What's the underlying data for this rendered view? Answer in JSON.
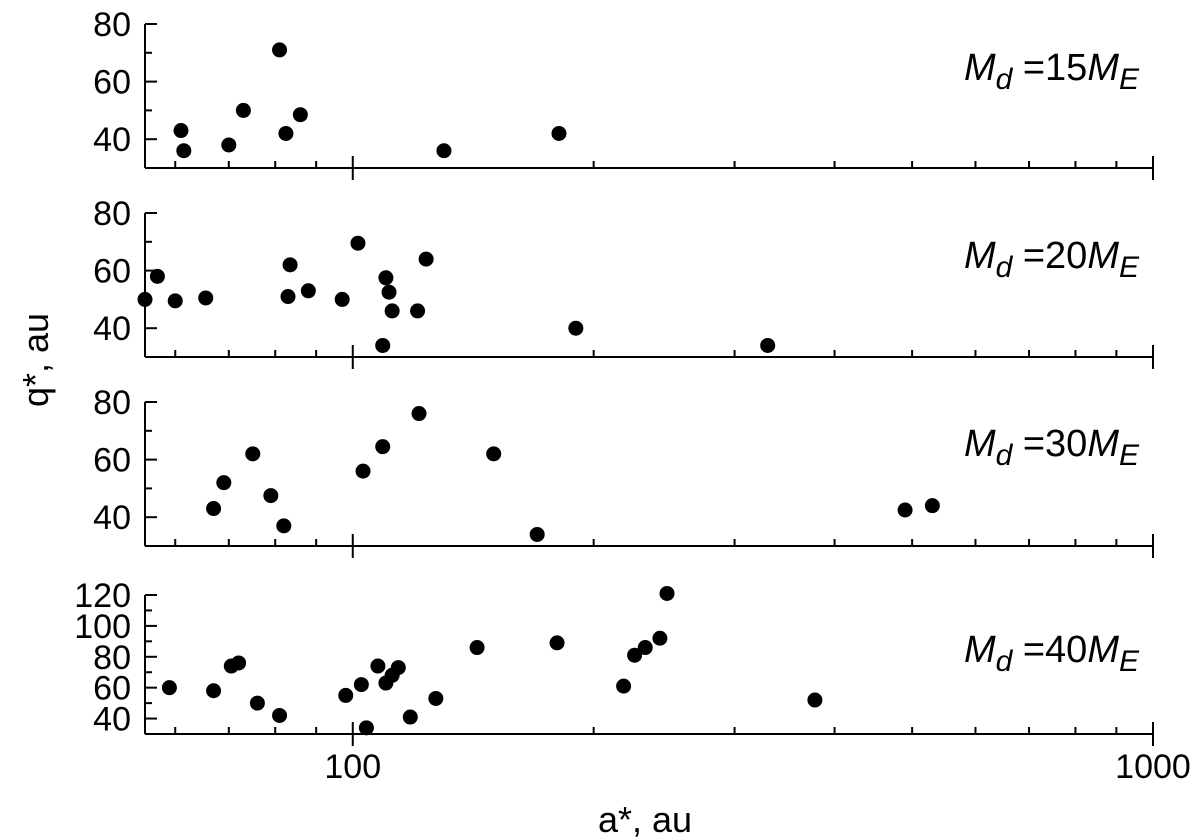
{
  "chart_data": {
    "type": "scatter",
    "xlabel": "a*, au",
    "ylabel": "q*, au",
    "x_scale": "log",
    "xlim": [
      55,
      1000
    ],
    "x_tick_labels": [
      {
        "value": 100,
        "label": "100"
      },
      {
        "value": 1000,
        "label": "1000"
      }
    ],
    "x_minor_ticks": [
      60,
      70,
      80,
      90,
      200,
      300,
      400,
      500,
      600,
      700,
      800,
      900
    ],
    "marker_color": "#000000",
    "panels": [
      {
        "label_parts": [
          {
            "text": "M",
            "italic": true
          },
          {
            "text": "d",
            "italic": true,
            "sub": true
          },
          {
            "text": " =15"
          },
          {
            "text": "M",
            "italic": true
          },
          {
            "text": "E",
            "italic": true,
            "sub": true
          }
        ],
        "ylim": [
          30,
          80
        ],
        "yticks": [
          40,
          60,
          80
        ],
        "points": [
          [
            61,
            43
          ],
          [
            61.5,
            36
          ],
          [
            70,
            38
          ],
          [
            73,
            50
          ],
          [
            81,
            71
          ],
          [
            82.5,
            42
          ],
          [
            86,
            48.5
          ],
          [
            130,
            36
          ],
          [
            181,
            42
          ]
        ]
      },
      {
        "label_parts": [
          {
            "text": "M",
            "italic": true
          },
          {
            "text": "d",
            "italic": true,
            "sub": true
          },
          {
            "text": " =20"
          },
          {
            "text": "M",
            "italic": true
          },
          {
            "text": "E",
            "italic": true,
            "sub": true
          }
        ],
        "ylim": [
          30,
          80
        ],
        "yticks": [
          40,
          60,
          80
        ],
        "points": [
          [
            55,
            50
          ],
          [
            57,
            58
          ],
          [
            60,
            49.5
          ],
          [
            65.5,
            50.5
          ],
          [
            83,
            51
          ],
          [
            83.5,
            62
          ],
          [
            88,
            53
          ],
          [
            97,
            50
          ],
          [
            101.5,
            69.5
          ],
          [
            110,
            57.5
          ],
          [
            111,
            52.5
          ],
          [
            112,
            46
          ],
          [
            120.5,
            46
          ],
          [
            123.5,
            64
          ],
          [
            109,
            34
          ],
          [
            190,
            40
          ],
          [
            330,
            34
          ]
        ]
      },
      {
        "label_parts": [
          {
            "text": "M",
            "italic": true
          },
          {
            "text": "d",
            "italic": true,
            "sub": true
          },
          {
            "text": " =30"
          },
          {
            "text": "M",
            "italic": true
          },
          {
            "text": "E",
            "italic": true,
            "sub": true
          }
        ],
        "ylim": [
          30,
          80
        ],
        "yticks": [
          40,
          60,
          80
        ],
        "points": [
          [
            67,
            43
          ],
          [
            69,
            52
          ],
          [
            75,
            62
          ],
          [
            79,
            47.5
          ],
          [
            82,
            37
          ],
          [
            103,
            56
          ],
          [
            109,
            64.5
          ],
          [
            121,
            76
          ],
          [
            150,
            62
          ],
          [
            170,
            34
          ],
          [
            490,
            42.5
          ],
          [
            530,
            44
          ]
        ]
      },
      {
        "label_parts": [
          {
            "text": "M",
            "italic": true
          },
          {
            "text": "d",
            "italic": true,
            "sub": true
          },
          {
            "text": " =40"
          },
          {
            "text": "M",
            "italic": true
          },
          {
            "text": "E",
            "italic": true,
            "sub": true
          }
        ],
        "ylim": [
          30,
          120
        ],
        "yticks": [
          40,
          60,
          80,
          100,
          120
        ],
        "points": [
          [
            59,
            60
          ],
          [
            67,
            58
          ],
          [
            70.5,
            74
          ],
          [
            72,
            76
          ],
          [
            76,
            50
          ],
          [
            81,
            42
          ],
          [
            98,
            55
          ],
          [
            102.5,
            62
          ],
          [
            104,
            34
          ],
          [
            107.5,
            74
          ],
          [
            110,
            63
          ],
          [
            112,
            68
          ],
          [
            114,
            73
          ],
          [
            118,
            41
          ],
          [
            127,
            53
          ],
          [
            143,
            86
          ],
          [
            180,
            89
          ],
          [
            218,
            61
          ],
          [
            225,
            81
          ],
          [
            232,
            86
          ],
          [
            242,
            92
          ],
          [
            247,
            121
          ],
          [
            378,
            52
          ]
        ]
      }
    ]
  }
}
